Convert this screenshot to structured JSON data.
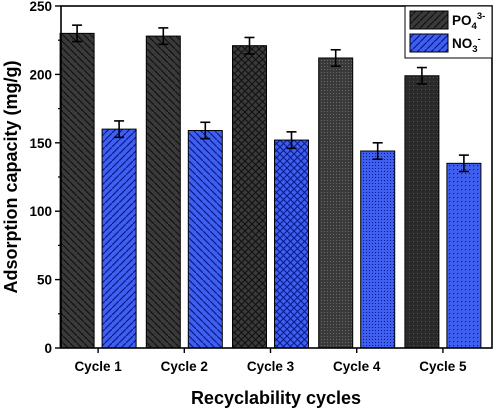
{
  "chart_data": {
    "type": "bar",
    "title": "",
    "xlabel": "Recyclability cycles",
    "ylabel": "Adsorption capacity (mg/g)",
    "categories": [
      "Cycle 1",
      "Cycle 2",
      "Cycle 3",
      "Cycle 4",
      "Cycle 5"
    ],
    "ylim": [
      0,
      250
    ],
    "yticks": [
      0,
      50,
      100,
      150,
      200,
      250
    ],
    "grid": false,
    "legend_position": "top-right",
    "series": [
      {
        "name": "PO₄³⁻",
        "name_base": "PO",
        "name_sub": "4",
        "name_sup": "3-",
        "color": "#3a3a3a",
        "values": [
          230,
          228,
          221,
          212,
          199
        ],
        "errors": [
          6,
          6,
          6,
          6,
          6
        ]
      },
      {
        "name": "NO₃⁻",
        "name_base": "NO",
        "name_sub": "3",
        "name_sup": "-",
        "color": "#3f5ff0",
        "values": [
          160,
          159,
          152,
          144,
          135
        ],
        "errors": [
          6,
          6,
          6,
          6,
          6
        ]
      }
    ],
    "patterns": [
      "diagonal-back",
      "diagonal-forward",
      "crosshatch",
      "dots-fine",
      "dots"
    ]
  }
}
